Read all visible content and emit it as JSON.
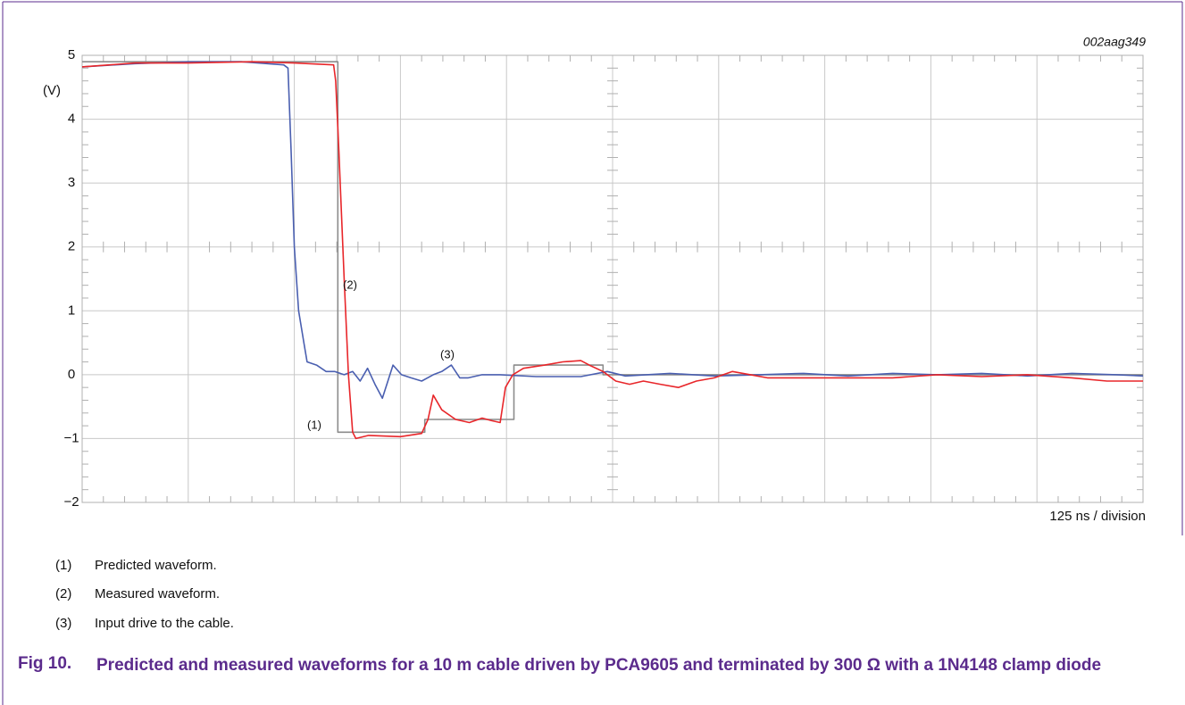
{
  "chart_data": {
    "type": "line",
    "label_id": "002aag349",
    "ylabel": "(V)",
    "xlabel": "125 ns / division",
    "ylim": [
      -2,
      5
    ],
    "yticks": [
      {
        "value": -2,
        "label": "−2"
      },
      {
        "value": -1,
        "label": "−1"
      },
      0,
      1,
      2,
      3,
      4,
      5
    ],
    "xlim": [
      0,
      10
    ],
    "xticks": [
      0,
      1,
      2,
      3,
      4,
      5,
      6,
      7,
      8,
      9,
      10
    ],
    "grid": true,
    "annotations": [
      "(1)",
      "(2)",
      "(3)"
    ],
    "series": [
      {
        "color": "#8c8c8c",
        "x": [
          0,
          2.41,
          2.41,
          3.23,
          3.23,
          4.07,
          4.07,
          4.91,
          4.91,
          10
        ],
        "values": [
          4.9,
          4.9,
          -0.9,
          -0.9,
          -0.7,
          -0.7,
          0.15,
          0.15,
          0,
          0
        ]
      },
      {
        "color": "#4a5fb0",
        "x": [
          0,
          0.5,
          1.0,
          1.5,
          1.9,
          1.94,
          1.97,
          2.0,
          2.04,
          2.09,
          2.12,
          2.21,
          2.3,
          2.38,
          2.47,
          2.55,
          2.62,
          2.69,
          2.76,
          2.83,
          2.93,
          3.01,
          3.1,
          3.2,
          3.31,
          3.39,
          3.48,
          3.56,
          3.64,
          3.77,
          3.94,
          4.28,
          4.7,
          4.95,
          5.12,
          5.54,
          5.96,
          6.38,
          6.8,
          7.22,
          7.64,
          8.06,
          8.48,
          8.91,
          9.33,
          9.75,
          10
        ],
        "values": [
          4.82,
          4.87,
          4.9,
          4.9,
          4.85,
          4.8,
          3.5,
          2.0,
          1.0,
          0.5,
          0.2,
          0.15,
          0.05,
          0.05,
          0.0,
          0.05,
          -0.1,
          0.1,
          -0.15,
          -0.37,
          0.15,
          0.0,
          -0.05,
          -0.1,
          0.0,
          0.05,
          0.15,
          -0.05,
          -0.05,
          0.0,
          0.0,
          -0.03,
          -0.03,
          0.05,
          -0.02,
          0.02,
          -0.02,
          0.0,
          0.02,
          -0.02,
          0.02,
          0.0,
          0.02,
          -0.02,
          0.02,
          0.0,
          -0.02
        ]
      },
      {
        "color": "#e8262a",
        "x": [
          0,
          0.5,
          1.0,
          1.6,
          2.0,
          2.37,
          2.39,
          2.42,
          2.47,
          2.51,
          2.55,
          2.58,
          2.7,
          3.0,
          3.2,
          3.26,
          3.31,
          3.39,
          3.52,
          3.65,
          3.77,
          3.86,
          3.94,
          3.99,
          4.06,
          4.16,
          4.36,
          4.53,
          4.7,
          4.78,
          4.91,
          5.03,
          5.16,
          5.29,
          5.45,
          5.62,
          5.79,
          5.96,
          6.13,
          6.3,
          6.46,
          6.8,
          7.22,
          7.64,
          8.06,
          8.48,
          8.91,
          9.33,
          9.66,
          10
        ],
        "values": [
          4.82,
          4.88,
          4.88,
          4.9,
          4.88,
          4.85,
          4.6,
          3.5,
          1.5,
          0.0,
          -0.9,
          -1.0,
          -0.95,
          -0.97,
          -0.92,
          -0.7,
          -0.32,
          -0.55,
          -0.7,
          -0.75,
          -0.68,
          -0.72,
          -0.75,
          -0.2,
          0.0,
          0.1,
          0.15,
          0.2,
          0.22,
          0.15,
          0.05,
          -0.1,
          -0.15,
          -0.1,
          -0.15,
          -0.2,
          -0.1,
          -0.05,
          0.05,
          0.0,
          -0.05,
          -0.05,
          -0.05,
          -0.05,
          0.0,
          -0.03,
          0.0,
          -0.05,
          -0.1,
          -0.1
        ]
      }
    ]
  },
  "notes": [
    {
      "number": "(1)",
      "text": "Predicted waveform."
    },
    {
      "number": "(2)",
      "text": "Measured waveform."
    },
    {
      "number": "(3)",
      "text": "Input drive to the cable."
    }
  ],
  "caption": {
    "number": "Fig 10.",
    "text": "Predicted and measured waveforms for a 10 m cable driven by PCA9605 and terminated by 300 Ω with a 1N4148 clamp diode"
  }
}
